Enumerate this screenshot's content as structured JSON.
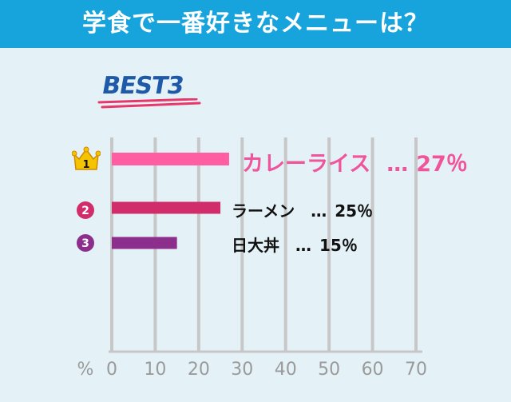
{
  "header": {
    "title": "学食で一番好きなメニューは？",
    "background": "#17a3dc"
  },
  "badge": {
    "text": "BEST3",
    "color": "#1e5aa8",
    "underline_color": "#e8386b"
  },
  "rank_icons": [
    {
      "rank": "1",
      "icon": "crown-icon",
      "color": "#f5c400"
    },
    {
      "rank": "2",
      "icon": "circle-number-2-icon",
      "color": "#d22d6b"
    },
    {
      "rank": "3",
      "icon": "circle-number-3-icon",
      "color": "#8c2e8c"
    }
  ],
  "chart_data": {
    "type": "bar",
    "orientation": "horizontal",
    "title": "学食で一番好きなメニューは？",
    "categories": [
      "カレーライス",
      "ラーメン",
      "日大丼"
    ],
    "values": [
      27,
      25,
      15
    ],
    "value_labels": [
      "27％",
      "25％",
      "15％"
    ],
    "separator": "…",
    "colors": [
      "#ff5fa2",
      "#d22d6b",
      "#8c2e8c"
    ],
    "xlabel": "%",
    "xlim": [
      0,
      70
    ],
    "xticks": [
      "0",
      "10",
      "20",
      "30",
      "40",
      "50",
      "60",
      "70"
    ],
    "grid": true,
    "grid_color": "#c7c7c7",
    "tick_color": "#9a9a9a"
  }
}
